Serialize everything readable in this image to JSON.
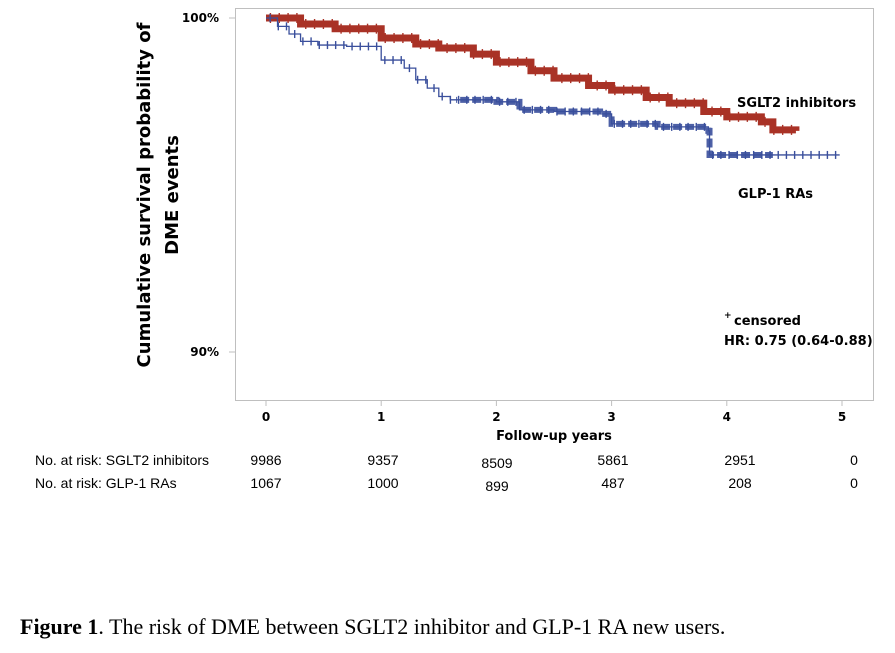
{
  "chart_data": {
    "type": "line",
    "subtype": "kaplan-meier",
    "title": "",
    "xlabel": "Follow-up years",
    "ylabel_lines": [
      "Cumulative survival probability of",
      "DME events"
    ],
    "xlim": [
      0,
      5
    ],
    "ylim": [
      0.89,
      1.0
    ],
    "x_ticks": [
      0,
      1,
      2,
      3,
      4,
      5
    ],
    "x_tick_labels": [
      "0",
      "1",
      "2",
      "3",
      "4",
      "5"
    ],
    "y_ticks": [
      1.0,
      0.9
    ],
    "y_tick_labels": [
      "100%",
      "90%"
    ],
    "grid": false,
    "series": [
      {
        "name": "SGLT2 inhibitors",
        "color": "#a93226",
        "x": [
          0,
          0.3,
          0.6,
          1.0,
          1.3,
          1.5,
          1.8,
          2.0,
          2.3,
          2.5,
          2.8,
          3.0,
          3.3,
          3.5,
          3.8,
          4.0,
          4.3,
          4.4,
          4.6
        ],
        "y": [
          1.0,
          0.9982,
          0.9968,
          0.994,
          0.9922,
          0.991,
          0.9892,
          0.9868,
          0.9842,
          0.982,
          0.9798,
          0.9784,
          0.9762,
          0.9745,
          0.972,
          0.9704,
          0.9689,
          0.9665,
          0.9662
        ]
      },
      {
        "name": "GLP-1 RAs",
        "color": "#3a4f9c",
        "x": [
          0,
          0.1,
          0.2,
          0.3,
          0.45,
          0.7,
          1.0,
          1.2,
          1.3,
          1.4,
          1.5,
          1.6,
          2.0,
          2.2,
          2.5,
          2.9,
          3.0,
          3.4,
          3.84,
          3.85,
          4.98
        ],
        "y": [
          1.0,
          0.9975,
          0.9952,
          0.993,
          0.9919,
          0.9915,
          0.9874,
          0.985,
          0.9815,
          0.979,
          0.9765,
          0.9755,
          0.9749,
          0.9725,
          0.972,
          0.9713,
          0.9683,
          0.9674,
          0.9662,
          0.959,
          0.959
        ]
      }
    ],
    "legend": {
      "placement": "inline-right",
      "entries": [
        "SGLT2 inhibitors",
        "GLP-1 RAs"
      ]
    },
    "annotations": {
      "censored": "censored",
      "censored_symbol": "+",
      "hr": "HR: 0.75 (0.64-0.88)"
    },
    "risk_table": {
      "rows": [
        {
          "label": "No. at risk: SGLT2 inhibitors",
          "values": [
            "9986",
            "9357",
            "8509",
            "5861",
            "2951",
            "0"
          ]
        },
        {
          "label": "No. at risk: GLP-1 RAs",
          "values": [
            "1067",
            "1000",
            "899",
            "487",
            "208",
            "0"
          ]
        }
      ]
    }
  },
  "caption": {
    "label": "Figure 1",
    "text": ". The risk of DME between SGLT2 inhibitor and GLP-1 RA new users."
  }
}
